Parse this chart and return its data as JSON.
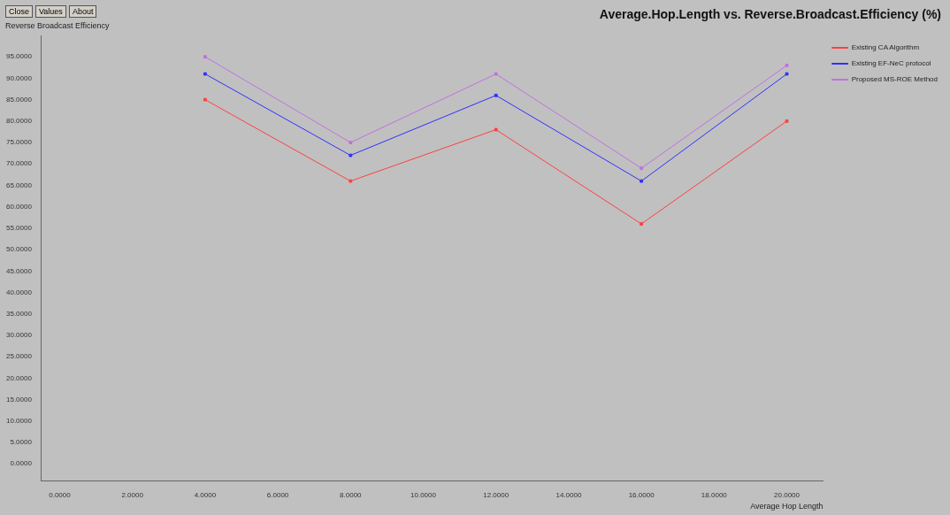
{
  "chart_data": {
    "type": "line",
    "title": "Average.Hop.Length  vs. Reverse.Broadcast.Efficiency (%)",
    "xlabel": "Average Hop Length",
    "ylabel": "Reverse Broadcast Efficiency",
    "annotations": [
      "Close",
      "Values",
      "About"
    ],
    "x": [
      4,
      8,
      12,
      16,
      20
    ],
    "series": [
      {
        "name": "Existing CA Algorithm",
        "color": "#ff4040",
        "values": [
          85,
          66,
          78,
          56,
          80
        ]
      },
      {
        "name": "Existing EF-NeC protocol",
        "color": "#3030ff",
        "values": [
          91,
          72,
          86,
          66,
          91
        ]
      },
      {
        "name": "Proposed MS-ROE Method",
        "color": "#c070e0",
        "values": [
          95,
          75,
          91,
          69,
          93
        ]
      }
    ],
    "xlim": [
      -0.5,
      21
    ],
    "xticks": [
      {
        "value": 0,
        "label": "0.0000"
      },
      {
        "value": 2,
        "label": "2.0000"
      },
      {
        "value": 4,
        "label": "4.0000"
      },
      {
        "value": 6,
        "label": "6.0000"
      },
      {
        "value": 8,
        "label": "8.0000"
      },
      {
        "value": 10,
        "label": "10.0000"
      },
      {
        "value": 12,
        "label": "12.0000"
      },
      {
        "value": 14,
        "label": "14.0000"
      },
      {
        "value": 16,
        "label": "16.0000"
      },
      {
        "value": 18,
        "label": "18.0000"
      },
      {
        "value": 20,
        "label": "20.0000"
      }
    ],
    "ylim": [
      -4,
      100
    ],
    "yticks": [
      {
        "value": 0,
        "label": "0.0000"
      },
      {
        "value": 5,
        "label": "5.0000"
      },
      {
        "value": 10,
        "label": "10.0000"
      },
      {
        "value": 15,
        "label": "15.0000"
      },
      {
        "value": 20,
        "label": "20.0000"
      },
      {
        "value": 25,
        "label": "25.0000"
      },
      {
        "value": 30,
        "label": "30.0000"
      },
      {
        "value": 35,
        "label": "35.0000"
      },
      {
        "value": 40,
        "label": "40.0000"
      },
      {
        "value": 45,
        "label": "45.0000"
      },
      {
        "value": 50,
        "label": "50.0000"
      },
      {
        "value": 55,
        "label": "55.0000"
      },
      {
        "value": 60,
        "label": "60.0000"
      },
      {
        "value": 65,
        "label": "65.0000"
      },
      {
        "value": 70,
        "label": "70.0000"
      },
      {
        "value": 75,
        "label": "75.0000"
      },
      {
        "value": 80,
        "label": "80.0000"
      },
      {
        "value": 85,
        "label": "85.0000"
      },
      {
        "value": 90,
        "label": "90.0000"
      },
      {
        "value": 95,
        "label": "95.0000"
      }
    ],
    "grid": false,
    "legend": "right",
    "marker": "square",
    "line_style": "solid"
  }
}
